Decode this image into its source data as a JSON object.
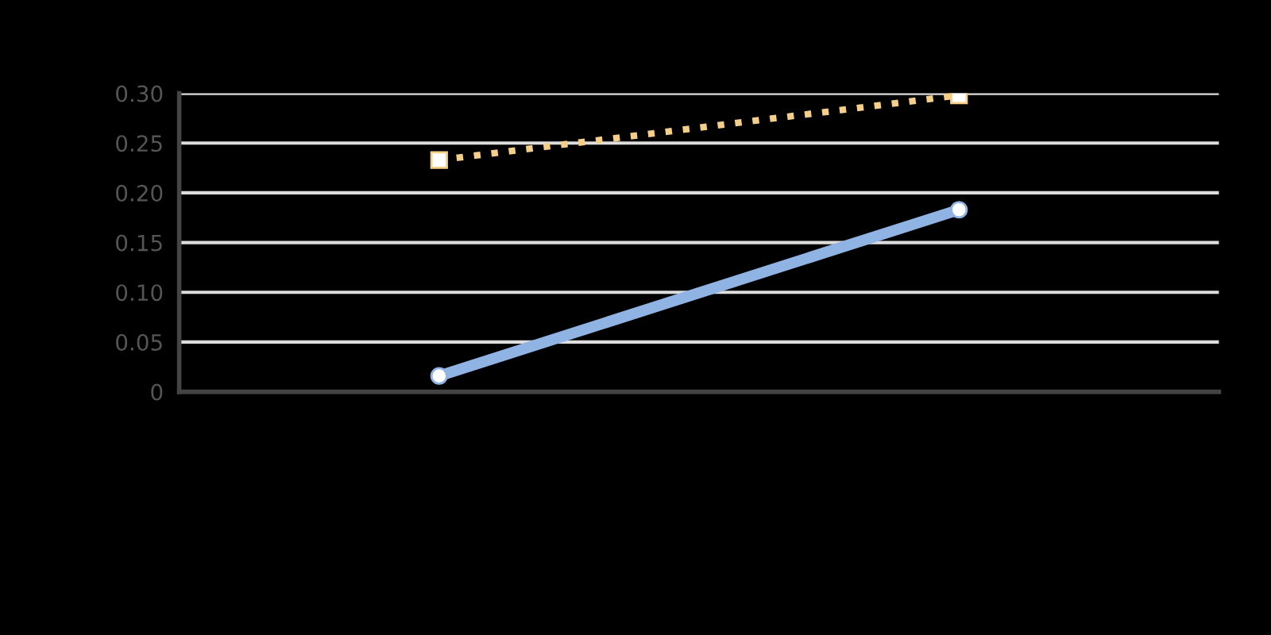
{
  "chart_data": {
    "type": "line",
    "categories": [
      null,
      null
    ],
    "series": [
      {
        "color": "#8fb3e3",
        "values": [
          0.016,
          0.183
        ],
        "marker": "circle",
        "line_style": "solid"
      },
      {
        "color": "#f5cf85",
        "values": [
          0.233,
          0.298
        ],
        "marker": "square",
        "line_style": "dotted"
      }
    ],
    "ylim": [
      0,
      0.3
    ],
    "yticks": [
      0,
      {
        "value": 0.05,
        "label": "0.05"
      },
      {
        "value": 0.1,
        "label": "0.10"
      },
      {
        "value": 0.15,
        "label": "0.15"
      },
      {
        "value": 0.2,
        "label": "0.20"
      },
      {
        "value": 0.25,
        "label": "0.25"
      },
      {
        "value": 0.3,
        "label": "0.30"
      }
    ],
    "grid": "y",
    "legend": false
  }
}
